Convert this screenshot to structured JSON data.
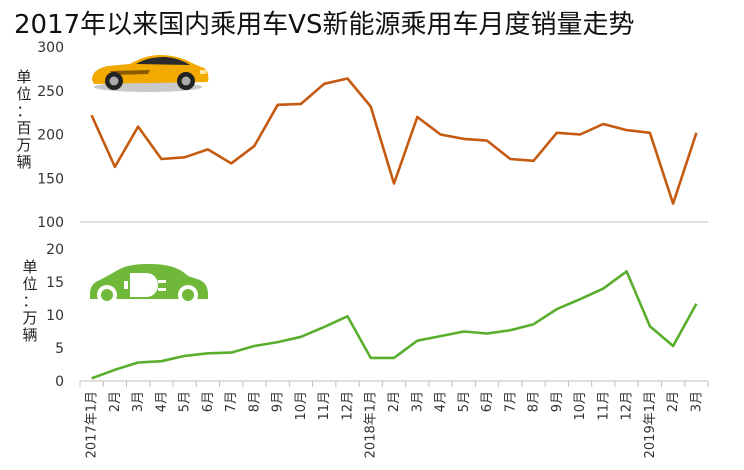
{
  "title": "2017年以来国内乘用车VS新能源乘用车月度销量走势",
  "colors": {
    "top_line": "#C55A11",
    "bottom_line": "#5AAE2E",
    "car_body": "#F2A900",
    "ev_body": "#70B83A"
  },
  "icons": {
    "top": "sports-car-icon",
    "bottom": "electric-car-plug-icon"
  },
  "chart_data": [
    {
      "type": "line",
      "ylabel": "单位：百万辆",
      "ylim": [
        100,
        300
      ],
      "yticks": [
        100,
        150,
        200,
        250,
        300
      ],
      "grid": false,
      "categories": [
        "2017年1月",
        "2月",
        "3月",
        "4月",
        "5月",
        "6月",
        "7月",
        "8月",
        "9月",
        "10月",
        "11月",
        "12月",
        "2018年1月",
        "2月",
        "3月",
        "4月",
        "5月",
        "6月",
        "7月",
        "8月",
        "9月",
        "10月",
        "11月",
        "12月",
        "2019年1月",
        "2月",
        "3月"
      ],
      "series": [
        {
          "values": [
            222,
            163,
            209,
            172,
            174,
            183,
            167,
            187,
            234,
            235,
            258,
            264,
            232,
            144,
            220,
            200,
            195,
            193,
            172,
            170,
            202,
            200,
            212,
            205,
            202,
            121,
            202
          ]
        }
      ]
    },
    {
      "type": "line",
      "ylabel": "单位：万辆",
      "ylim": [
        0,
        20
      ],
      "yticks": [
        0,
        5,
        10,
        15,
        20
      ],
      "grid": false,
      "categories": [
        "2017年1月",
        "2月",
        "3月",
        "4月",
        "5月",
        "6月",
        "7月",
        "8月",
        "9月",
        "10月",
        "11月",
        "12月",
        "2018年1月",
        "2月",
        "3月",
        "4月",
        "5月",
        "6月",
        "7月",
        "8月",
        "9月",
        "10月",
        "11月",
        "12月",
        "2019年1月",
        "2月",
        "3月"
      ],
      "series": [
        {
          "values": [
            0.4,
            1.7,
            2.8,
            3.0,
            3.8,
            4.2,
            4.3,
            5.3,
            5.9,
            6.7,
            8.2,
            9.8,
            3.5,
            3.5,
            6.1,
            6.8,
            7.5,
            7.2,
            7.7,
            8.6,
            10.9,
            12.4,
            14.0,
            16.6,
            8.3,
            5.3,
            11.7
          ]
        }
      ]
    }
  ]
}
